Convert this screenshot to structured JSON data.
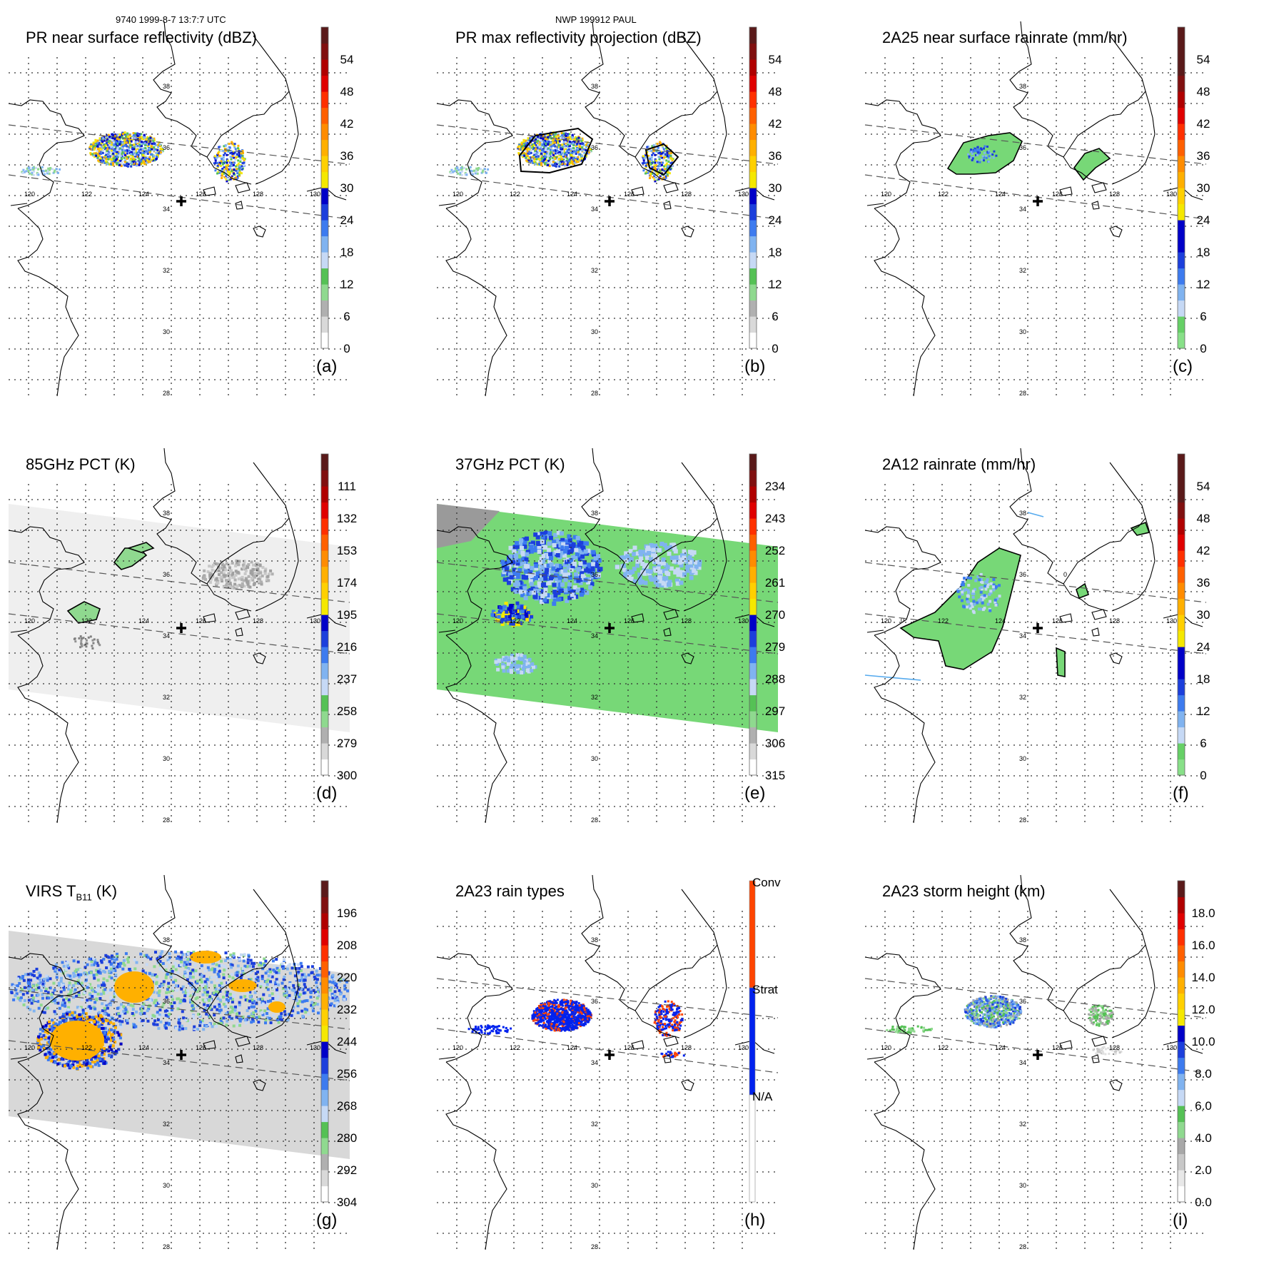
{
  "header": {
    "left": "9740 1999-8-7 13:7:7 UTC",
    "center": "NWP 199912 PAUL"
  },
  "map": {
    "lon_labels": [
      "120",
      "122",
      "124",
      "126",
      "128",
      "130"
    ],
    "lat_labels": [
      "38",
      "36",
      "34",
      "32",
      "30",
      "28"
    ]
  },
  "chart_data": [
    {
      "id": "a",
      "type": "heatmap",
      "title": "PR near surface reflectivity (dBZ)",
      "panel_label": "(a)",
      "colorbar_ticks": [
        "54",
        "48",
        "42",
        "36",
        "30",
        "24",
        "18",
        "12",
        "6",
        "0"
      ],
      "colorbar_range": [
        0,
        60
      ],
      "swath": "narrow",
      "field": "pr"
    },
    {
      "id": "b",
      "type": "heatmap",
      "title": "PR max reflectivity projection (dBZ)",
      "panel_label": "(b)",
      "colorbar_ticks": [
        "54",
        "48",
        "42",
        "36",
        "30",
        "24",
        "18",
        "12",
        "6",
        "0"
      ],
      "colorbar_range": [
        0,
        60
      ],
      "swath": "narrow",
      "field": "prmax"
    },
    {
      "id": "c",
      "type": "heatmap",
      "title": "2A25 near surface rainrate (mm/hr)",
      "panel_label": "(c)",
      "colorbar_ticks": [
        "54",
        "48",
        "42",
        "36",
        "30",
        "24",
        "18",
        "12",
        "6",
        "0"
      ],
      "colorbar_range": [
        0,
        60
      ],
      "swath": "narrow",
      "field": "rain25"
    },
    {
      "id": "d",
      "type": "heatmap",
      "title": "85GHz PCT (K)",
      "panel_label": "(d)",
      "colorbar_ticks": [
        "111",
        "132",
        "153",
        "174",
        "195",
        "216",
        "237",
        "258",
        "279",
        "300"
      ],
      "colorbar_range": [
        90,
        300
      ],
      "swath": "wide",
      "field": "pct85"
    },
    {
      "id": "e",
      "type": "heatmap",
      "title": "37GHz PCT (K)",
      "panel_label": "(e)",
      "colorbar_ticks": [
        "234",
        "243",
        "252",
        "261",
        "270",
        "279",
        "288",
        "297",
        "306",
        "315"
      ],
      "colorbar_range": [
        225,
        315
      ],
      "swath": "wide",
      "field": "pct37"
    },
    {
      "id": "f",
      "type": "heatmap",
      "title": "2A12 rainrate (mm/hr)",
      "panel_label": "(f)",
      "colorbar_ticks": [
        "54",
        "48",
        "42",
        "36",
        "30",
        "24",
        "18",
        "12",
        "6",
        "0"
      ],
      "colorbar_range": [
        0,
        60
      ],
      "swath": "none",
      "field": "rain12",
      "contour_labels": [
        "0",
        "0",
        "0"
      ]
    },
    {
      "id": "g",
      "type": "heatmap",
      "title_main": "VIRS T",
      "title_sub": "B11",
      "title_unit": " (K)",
      "panel_label": "(g)",
      "colorbar_ticks": [
        "196",
        "208",
        "220",
        "232",
        "244",
        "256",
        "268",
        "280",
        "292",
        "304"
      ],
      "colorbar_range": [
        184,
        304
      ],
      "swath": "wide",
      "field": "virs"
    },
    {
      "id": "h",
      "type": "heatmap",
      "title": "2A23 rain types",
      "panel_label": "(h)",
      "categories": [
        "Conv",
        "Strat",
        "N/A"
      ],
      "swath": "narrow",
      "field": "types"
    },
    {
      "id": "i",
      "type": "heatmap",
      "title": "2A23 storm height (km)",
      "panel_label": "(i)",
      "colorbar_ticks": [
        "18.0",
        "16.0",
        "14.0",
        "12.0",
        "10.0",
        "8.0",
        "6.0",
        "4.0",
        "2.0",
        "0.0"
      ],
      "colorbar_range": [
        0,
        20
      ],
      "swath": "narrow",
      "field": "height"
    }
  ],
  "colors": {
    "scale_main": [
      "#ffffff",
      "#d9d9d9",
      "#b0b0b0",
      "#8fd98f",
      "#55c155",
      "#c6d9f5",
      "#80b3f0",
      "#3d7bef",
      "#1c3fdc",
      "#0000c8",
      "#f5e800",
      "#ffd000",
      "#ffb000",
      "#ff8c00",
      "#ff6000",
      "#ff3000",
      "#e00000",
      "#b00000",
      "#801010",
      "#5a1a1a"
    ],
    "scale_rain": [
      "#88e088",
      "#66d066",
      "#c6d9f5",
      "#80b3f0",
      "#3d7bef",
      "#1c3fdc",
      "#0000c8",
      "#0000c8",
      "#f5e800",
      "#ffd000",
      "#ffb000",
      "#ff8c00",
      "#ff6000",
      "#ff3000",
      "#e00000",
      "#b00000",
      "#801010",
      "#5a1a1a",
      "#5a1a1a",
      "#5a1a1a"
    ],
    "scale_rain_f": [
      "#88e088",
      "#66d066",
      "#c6d9f5",
      "#80b3f0",
      "#3d7bef",
      "#1c3fdc",
      "#0000c8",
      "#0000c8",
      "#f5e800",
      "#ffd000",
      "#ffb000",
      "#ff8c00",
      "#ff6000",
      "#ff3000",
      "#e00000",
      "#b00000",
      "#801010",
      "#5a1a1a",
      "#5a1a1a",
      "#5a1a1a"
    ],
    "scale_height": [
      "#ffffff",
      "#e8e8e8",
      "#c8c8c8",
      "#a8a8a8",
      "#8fd98f",
      "#55c155",
      "#c6d9f5",
      "#80b3f0",
      "#3d7bef",
      "#1c3fdc",
      "#0000c8",
      "#f5e800",
      "#ffd000",
      "#ffb000",
      "#ff8c00",
      "#ff6000",
      "#ff3000",
      "#e00000",
      "#b00000",
      "#5a1a1a"
    ],
    "types": {
      "Conv": "#ff4400",
      "Strat": "#0022ee",
      "N/A": "#ffffff"
    }
  }
}
